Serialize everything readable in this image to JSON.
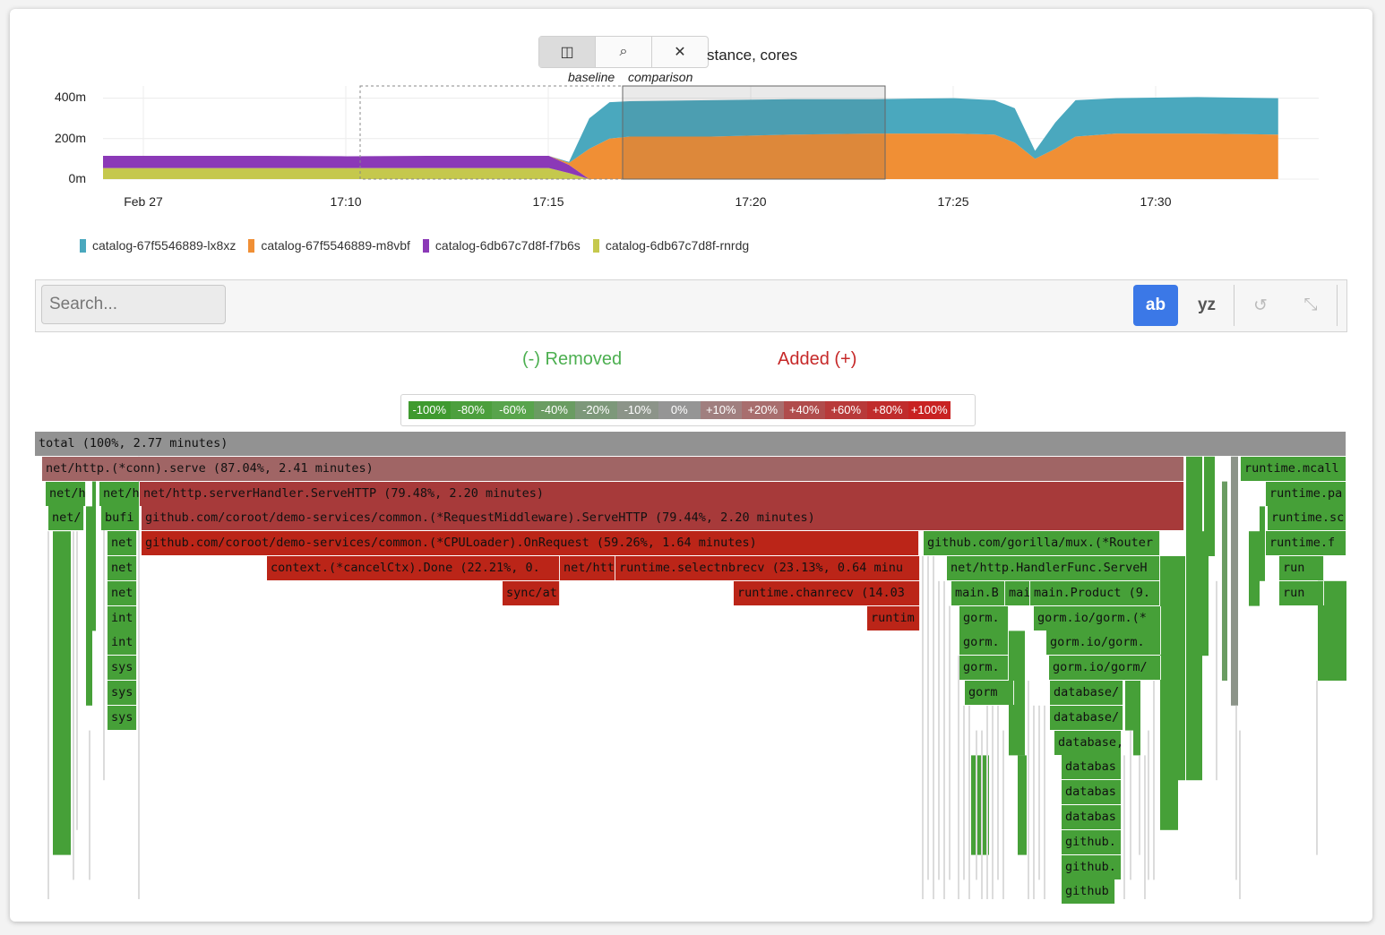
{
  "chart": {
    "title": "stance, cores",
    "toolbar": [
      {
        "icon": "split-compare-icon",
        "glyph": "◫",
        "active": true
      },
      {
        "icon": "zoom-icon",
        "glyph": "⌕",
        "active": false
      },
      {
        "icon": "close-icon",
        "glyph": "✕",
        "active": false
      }
    ],
    "baseline_label": "baseline",
    "comparison_label": "comparison",
    "chart_data": {
      "type": "area",
      "stacked": true,
      "x": [
        "17:05",
        "17:07",
        "17:09",
        "17:11",
        "17:13",
        "17:15",
        "17:16",
        "17:16.5",
        "17:17",
        "17:17.5",
        "17:18",
        "17:20",
        "17:22",
        "17:24",
        "17:26",
        "17:27",
        "17:27.5",
        "17:28",
        "17:28.5",
        "17:29",
        "17:30",
        "17:32",
        "17:34"
      ],
      "series": [
        {
          "name": "catalog-6db67c7d8f-rnrdg",
          "color": "#c5c84d",
          "values": [
            55,
            55,
            55,
            55,
            55,
            55,
            55,
            30,
            0,
            0,
            0,
            0,
            0,
            0,
            0,
            0,
            0,
            0,
            0,
            0,
            0,
            0,
            0
          ]
        },
        {
          "name": "catalog-6db67c7d8f-f7b6s",
          "color": "#8b39b7",
          "values": [
            60,
            60,
            60,
            58,
            60,
            60,
            60,
            40,
            0,
            0,
            0,
            0,
            0,
            0,
            0,
            0,
            0,
            0,
            0,
            0,
            0,
            0,
            0
          ]
        },
        {
          "name": "catalog-67f5546889-m8vbf",
          "color": "#f08f35",
          "values": [
            0,
            0,
            0,
            0,
            0,
            0,
            0,
            10,
            150,
            200,
            210,
            210,
            220,
            225,
            225,
            220,
            180,
            100,
            150,
            210,
            225,
            225,
            220
          ]
        },
        {
          "name": "catalog-67f5546889-lx8xz",
          "color": "#4aa8be",
          "values": [
            0,
            0,
            0,
            0,
            0,
            0,
            0,
            5,
            150,
            180,
            175,
            180,
            175,
            170,
            175,
            170,
            170,
            40,
            130,
            180,
            175,
            180,
            180
          ]
        }
      ],
      "yticks": [
        "400m",
        "200m",
        "0m"
      ],
      "xticks": [
        "Feb 27",
        "17:10",
        "17:15",
        "17:20",
        "17:25",
        "17:30"
      ],
      "ylim": [
        0,
        460
      ]
    },
    "legend": [
      {
        "label": "catalog-67f5546889-lx8xz",
        "color": "#4aa8be"
      },
      {
        "label": "catalog-67f5546889-m8vbf",
        "color": "#f08f35"
      },
      {
        "label": "catalog-6db67c7d8f-f7b6s",
        "color": "#8b39b7"
      },
      {
        "label": "catalog-6db67c7d8f-rnrdg",
        "color": "#c5c84d"
      }
    ]
  },
  "search": {
    "placeholder": "Search..."
  },
  "toolbar": {
    "ab": "ab",
    "yz": "yz",
    "undo": "↺",
    "shrink": "⤡"
  },
  "diff": {
    "removed": "(-) Removed",
    "added": "Added (+)"
  },
  "scale": [
    {
      "label": "-100%",
      "color": "#3f9a2f"
    },
    {
      "label": "-80%",
      "color": "#4c9f3d"
    },
    {
      "label": "-60%",
      "color": "#58a44c"
    },
    {
      "label": "-40%",
      "color": "#6a9c62"
    },
    {
      "label": "-20%",
      "color": "#7d987a"
    },
    {
      "label": "-10%",
      "color": "#8c9489"
    },
    {
      "label": "0%",
      "color": "#959595"
    },
    {
      "label": "+10%",
      "color": "#a07f7f"
    },
    {
      "label": "+20%",
      "color": "#a86e6e"
    },
    {
      "label": "+40%",
      "color": "#b04c4c"
    },
    {
      "label": "+60%",
      "color": "#b83a3a"
    },
    {
      "label": "+80%",
      "color": "#c02c2c"
    },
    {
      "label": "+100%",
      "color": "#c82222"
    }
  ],
  "flame": [
    {
      "l": "total (100%, 2.77 minutes)",
      "c": "#929292"
    },
    {
      "l": "net/http.(*conn).serve (87.04%, 2.41 minutes)",
      "c": "#a06565"
    },
    {
      "l": "runtime.mcall",
      "c": "#46a038"
    },
    {
      "l": "net/h",
      "c": "#46a038"
    },
    {
      "l": "net/h",
      "c": "#46a038"
    },
    {
      "l": "net/http.serverHandler.ServeHTTP (79.48%, 2.20 minutes)",
      "c": "#a73a3a"
    },
    {
      "l": "runtime.pa",
      "c": "#46a038"
    },
    {
      "l": "net/",
      "c": "#46a038"
    },
    {
      "l": "bufi",
      "c": "#46a038"
    },
    {
      "l": "github.com/coroot/demo-services/common.(*RequestMiddleware).ServeHTTP (79.44%, 2.20 minutes)",
      "c": "#a73a3a"
    },
    {
      "l": "runtime.sc",
      "c": "#46a038"
    },
    {
      "l": "net",
      "c": "#46a038"
    },
    {
      "l": "github.com/coroot/demo-services/common.(*CPULoader).OnRequest (59.26%, 1.64 minutes)",
      "c": "#bb2518"
    },
    {
      "l": "github.com/gorilla/mux.(*Router",
      "c": "#46a038"
    },
    {
      "l": "runtime.f",
      "c": "#46a038"
    },
    {
      "l": "net",
      "c": "#46a038"
    },
    {
      "l": "context.(*cancelCtx).Done (22.21%, 0.",
      "c": "#bb2518"
    },
    {
      "l": "net/htt",
      "c": "#bb2518"
    },
    {
      "l": "runtime.selectnbrecv (23.13%, 0.64 minu",
      "c": "#bb2518"
    },
    {
      "l": "net/http.HandlerFunc.ServeH",
      "c": "#46a038"
    },
    {
      "l": "run",
      "c": "#46a038"
    },
    {
      "l": "net",
      "c": "#46a038"
    },
    {
      "l": "sync/at",
      "c": "#bb2518"
    },
    {
      "l": "runtime.chanrecv (14.03",
      "c": "#bb2518"
    },
    {
      "l": "main.B",
      "c": "#46a038"
    },
    {
      "l": "mai",
      "c": "#46a038"
    },
    {
      "l": "main.Product (9.",
      "c": "#46a038"
    },
    {
      "l": "run",
      "c": "#46a038"
    },
    {
      "l": "int",
      "c": "#46a038"
    },
    {
      "l": "runtim",
      "c": "#bb2518"
    },
    {
      "l": "gorm.",
      "c": "#46a038"
    },
    {
      "l": "gorm.io/gorm.(*",
      "c": "#46a038"
    },
    {
      "l": "int",
      "c": "#46a038"
    },
    {
      "l": "gorm.",
      "c": "#46a038"
    },
    {
      "l": "gorm.io/gorm.",
      "c": "#46a038"
    },
    {
      "l": "sys",
      "c": "#46a038"
    },
    {
      "l": "gorm.",
      "c": "#46a038"
    },
    {
      "l": "gorm.io/gorm/",
      "c": "#46a038"
    },
    {
      "l": "sys",
      "c": "#46a038"
    },
    {
      "l": "gorm",
      "c": "#46a038"
    },
    {
      "l": "database/",
      "c": "#46a038"
    },
    {
      "l": "sys",
      "c": "#46a038"
    },
    {
      "l": "database/",
      "c": "#46a038"
    },
    {
      "l": "database,",
      "c": "#46a038"
    },
    {
      "l": "databas",
      "c": "#46a038"
    },
    {
      "l": "databas",
      "c": "#46a038"
    },
    {
      "l": "databas",
      "c": "#46a038"
    },
    {
      "l": "github.",
      "c": "#46a038"
    },
    {
      "l": "github.",
      "c": "#46a038"
    },
    {
      "l": "github",
      "c": "#46a038"
    }
  ]
}
